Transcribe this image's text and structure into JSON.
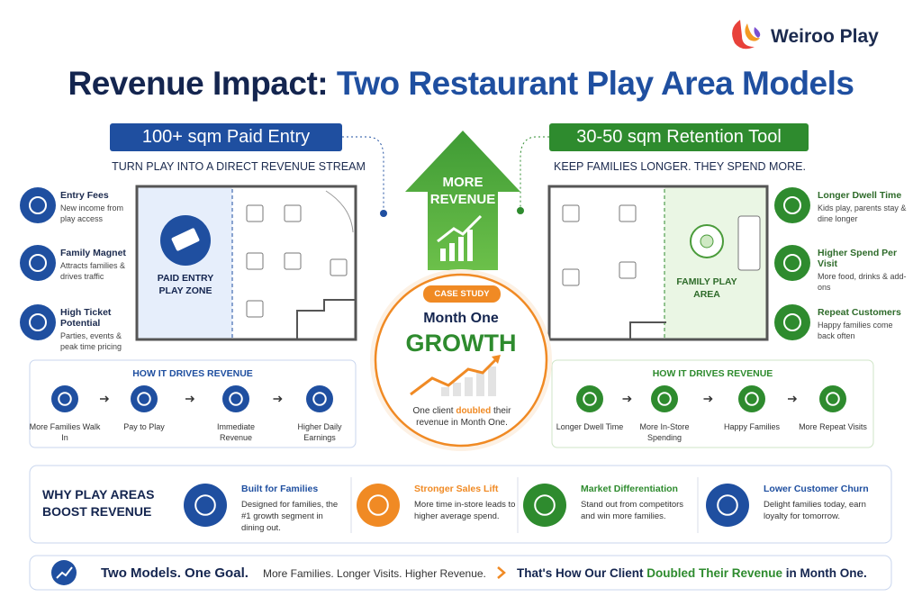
{
  "brand": "Weiroo Play",
  "title": {
    "part1": "Revenue Impact:",
    "part2": "Two Restaurant Play Area Models"
  },
  "left": {
    "badge": "100+ sqm Paid Entry",
    "tagline": "TURN PLAY INTO A DIRECT REVENUE STREAM",
    "zone_label": "PAID ENTRY PLAY ZONE",
    "features": [
      {
        "title": "Entry Fees",
        "text": "New income from play access"
      },
      {
        "title": "Family Magnet",
        "text": "Attracts families & drives traffic"
      },
      {
        "title": "High Ticket Potential",
        "text": "Parties, events & peak time pricing"
      }
    ],
    "flow": {
      "heading": "HOW IT DRIVES REVENUE",
      "steps": [
        "More Families Walk In",
        "Pay to Play",
        "Immediate Revenue",
        "Higher Daily Earnings"
      ]
    }
  },
  "right": {
    "badge": "30-50 sqm Retention Tool",
    "tagline": "KEEP FAMILIES LONGER. THEY SPEND MORE.",
    "zone_label": "FAMILY PLAY AREA",
    "features": [
      {
        "title": "Longer Dwell Time",
        "text": "Kids play, parents stay & dine longer"
      },
      {
        "title": "Higher Spend Per Visit",
        "text": "More food, drinks & add-ons"
      },
      {
        "title": "Repeat Customers",
        "text": "Happy families come back often"
      }
    ],
    "flow": {
      "heading": "HOW IT DRIVES REVENUE",
      "steps": [
        "Longer Dwell Time",
        "More In-Store Spending",
        "Happy Families",
        "More Repeat Visits"
      ]
    }
  },
  "center": {
    "arrow_text": "MORE REVENUE",
    "badge": "CASE STUDY",
    "line1": "Month One",
    "line2": "GROWTH",
    "caption": [
      "One client ",
      "doubled",
      " their revenue in Month One."
    ]
  },
  "why": {
    "heading": "WHY PLAY AREAS BOOST REVENUE",
    "items": [
      {
        "title": "Built for Families",
        "text": "Designed for families, the #1 growth segment in dining out."
      },
      {
        "title": "Stronger Sales Lift",
        "text": "More time in-store leads to higher average spend."
      },
      {
        "title": "Market Differentiation",
        "text": "Stand out from competitors and win more families."
      },
      {
        "title": "Lower Customer Churn",
        "text": "Delight families today, earn loyalty for tomorrow."
      }
    ]
  },
  "footer": {
    "bold": "Two Models. One Goal.",
    "text": "More Families. Longer Visits. Higher Revenue.",
    "claim": [
      "That's How Our Client ",
      "Doubled Their Revenue",
      " in Month One."
    ]
  }
}
